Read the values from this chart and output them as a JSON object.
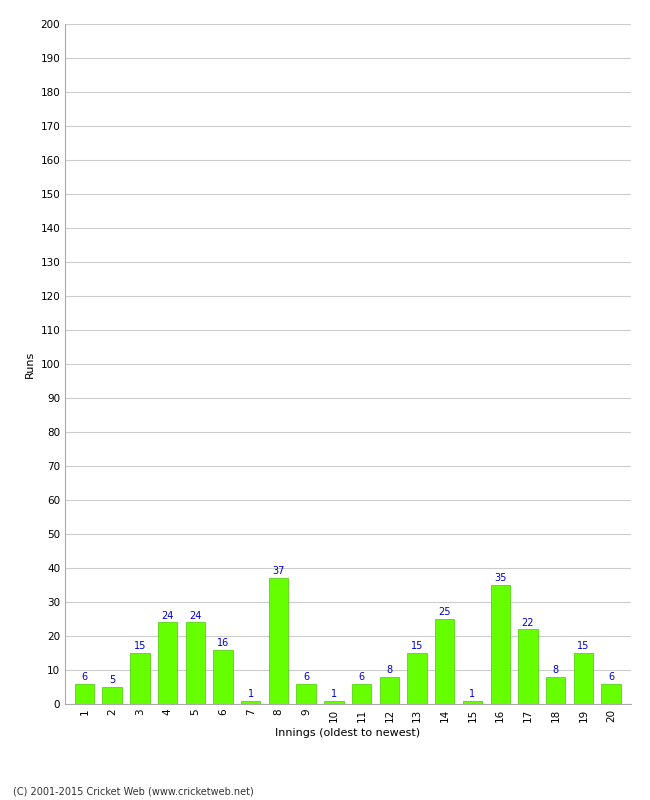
{
  "innings": [
    1,
    2,
    3,
    4,
    5,
    6,
    7,
    8,
    9,
    10,
    11,
    12,
    13,
    14,
    15,
    16,
    17,
    18,
    19,
    20
  ],
  "runs": [
    6,
    5,
    15,
    24,
    24,
    16,
    1,
    37,
    6,
    1,
    6,
    8,
    15,
    25,
    1,
    35,
    22,
    8,
    15,
    6
  ],
  "bar_color": "#66ff00",
  "bar_edge_color": "#44cc00",
  "xlabel": "Innings (oldest to newest)",
  "ylabel": "Runs",
  "ylim": [
    0,
    200
  ],
  "yticks": [
    0,
    10,
    20,
    30,
    40,
    50,
    60,
    70,
    80,
    90,
    100,
    110,
    120,
    130,
    140,
    150,
    160,
    170,
    180,
    190,
    200
  ],
  "value_label_color": "#0000cc",
  "value_label_fontsize": 7,
  "axis_label_fontsize": 8,
  "tick_fontsize": 7.5,
  "footer_text": "(C) 2001-2015 Cricket Web (www.cricketweb.net)",
  "footer_fontsize": 7,
  "background_color": "#ffffff",
  "grid_color": "#cccccc"
}
